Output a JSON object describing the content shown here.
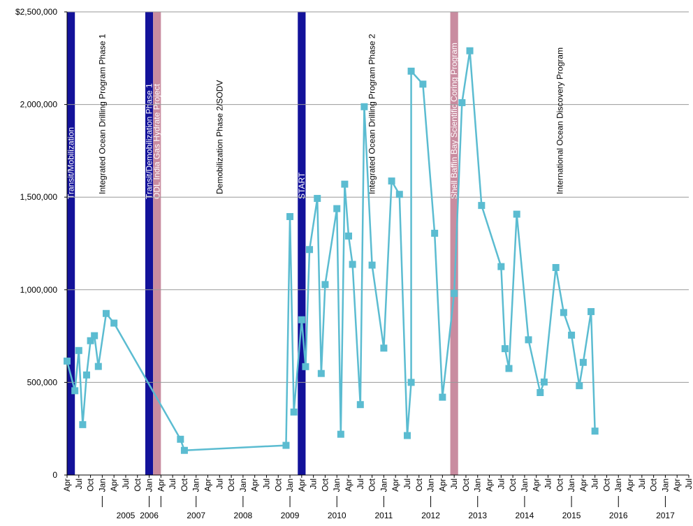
{
  "chart_data": {
    "type": "line",
    "title": "",
    "xlabel": "",
    "ylabel": "",
    "ylim": [
      0,
      2500000
    ],
    "grid": true,
    "legend": "none",
    "y_ticks": [
      {
        "value": 0,
        "label": "0"
      },
      {
        "value": 500000,
        "label": "500,000"
      },
      {
        "value": 1000000,
        "label": "1,000,000"
      },
      {
        "value": 1500000,
        "label": "1,500,000"
      },
      {
        "value": 2000000,
        "label": "2,000,000"
      },
      {
        "value": 2500000,
        "label": "$2,500,000"
      }
    ],
    "x_range": [
      "2004-04",
      "2017-07"
    ],
    "x_month_ticks": [
      {
        "date": "2004-04",
        "label": "Apr"
      },
      {
        "date": "2004-07",
        "label": "Jul"
      },
      {
        "date": "2004-10",
        "label": "Oct"
      },
      {
        "date": "2005-01",
        "label": "Jan"
      },
      {
        "date": "2005-04",
        "label": "Apr"
      },
      {
        "date": "2005-07",
        "label": "Jul"
      },
      {
        "date": "2005-10",
        "label": "Oct"
      },
      {
        "date": "2006-01",
        "label": "Jan"
      },
      {
        "date": "2006-04",
        "label": "Apr"
      },
      {
        "date": "2006-07",
        "label": "Jul"
      },
      {
        "date": "2006-10",
        "label": "Oct"
      },
      {
        "date": "2007-01",
        "label": "Jan"
      },
      {
        "date": "2007-04",
        "label": "Apr"
      },
      {
        "date": "2007-07",
        "label": "Jul"
      },
      {
        "date": "2007-10",
        "label": "Oct"
      },
      {
        "date": "2008-01",
        "label": "Jan"
      },
      {
        "date": "2008-04",
        "label": "Apr"
      },
      {
        "date": "2008-07",
        "label": "Jul"
      },
      {
        "date": "2008-10",
        "label": "Oct"
      },
      {
        "date": "2009-01",
        "label": "Jan"
      },
      {
        "date": "2009-04",
        "label": "Apr"
      },
      {
        "date": "2009-07",
        "label": "Jul"
      },
      {
        "date": "2009-10",
        "label": "Oct"
      },
      {
        "date": "2010-01",
        "label": "Jan"
      },
      {
        "date": "2010-04",
        "label": "Apr"
      },
      {
        "date": "2010-07",
        "label": "Jul"
      },
      {
        "date": "2010-10",
        "label": "Oct"
      },
      {
        "date": "2011-01",
        "label": "Jan"
      },
      {
        "date": "2011-04",
        "label": "Apr"
      },
      {
        "date": "2011-07",
        "label": "Jul"
      },
      {
        "date": "2011-10",
        "label": "Oct"
      },
      {
        "date": "2012-01",
        "label": "Jan"
      },
      {
        "date": "2012-04",
        "label": "Apr"
      },
      {
        "date": "2012-07",
        "label": "Jul"
      },
      {
        "date": "2012-10",
        "label": "Oct"
      },
      {
        "date": "2013-01",
        "label": "Jan"
      },
      {
        "date": "2013-04",
        "label": "Apr"
      },
      {
        "date": "2013-07",
        "label": "Jul"
      },
      {
        "date": "2013-10",
        "label": "Oct"
      },
      {
        "date": "2014-01",
        "label": "Jan"
      },
      {
        "date": "2014-04",
        "label": "Apr"
      },
      {
        "date": "2014-07",
        "label": "Jul"
      },
      {
        "date": "2014-10",
        "label": "Oct"
      },
      {
        "date": "2015-01",
        "label": "Jan"
      },
      {
        "date": "2015-04",
        "label": "Apr"
      },
      {
        "date": "2015-07",
        "label": "Jul"
      },
      {
        "date": "2015-10",
        "label": "Oct"
      },
      {
        "date": "2016-01",
        "label": "Jan"
      },
      {
        "date": "2016-04",
        "label": "Apr"
      },
      {
        "date": "2016-07",
        "label": "Jul"
      },
      {
        "date": "2016-10",
        "label": "Oct"
      },
      {
        "date": "2017-01",
        "label": "Jan"
      },
      {
        "date": "2017-04",
        "label": "Apr"
      },
      {
        "date": "2017-07",
        "label": "Jul"
      }
    ],
    "x_year_labels": [
      {
        "date": "2005-07",
        "label": "2005"
      },
      {
        "date": "2006-01",
        "label": "2006"
      },
      {
        "date": "2007-01",
        "label": "2007"
      },
      {
        "date": "2008-01",
        "label": "2008"
      },
      {
        "date": "2009-01",
        "label": "2009"
      },
      {
        "date": "2010-01",
        "label": "2010"
      },
      {
        "date": "2011-01",
        "label": "2011"
      },
      {
        "date": "2012-01",
        "label": "2012"
      },
      {
        "date": "2013-01",
        "label": "2013"
      },
      {
        "date": "2014-01",
        "label": "2014"
      },
      {
        "date": "2015-01",
        "label": "2015"
      },
      {
        "date": "2016-01",
        "label": "2016"
      },
      {
        "date": "2017-01",
        "label": "2017"
      }
    ],
    "year_separators": [
      "2005-01",
      "2006-01",
      "2006-04",
      "2007-01",
      "2008-01",
      "2009-01",
      "2010-01",
      "2011-01",
      "2012-01",
      "2013-01",
      "2014-01",
      "2015-01",
      "2016-01",
      "2017-01"
    ],
    "period_bands": [
      {
        "start": "2004-04",
        "end": "2004-06",
        "label": "Transit/Mobilization",
        "color": "#13129a"
      },
      {
        "start": "2005-12",
        "end": "2006-02",
        "label": "Transit/Demobilization Phase 1",
        "color": "#13129a"
      },
      {
        "start": "2006-02",
        "end": "2006-04",
        "label": "ODL India Gas Hydrate Project",
        "color": "#c98ca0"
      },
      {
        "start": "2009-03",
        "end": "2009-05",
        "label": "START",
        "color": "#13129a"
      },
      {
        "start": "2012-06",
        "end": "2012-08",
        "label": "Shell Baffin Bay Scientific Coring Program",
        "color": "#c98ca0"
      }
    ],
    "period_labels": [
      {
        "date": "2005-01",
        "label": "Integrated Ocean Drilling Program Phase 1"
      },
      {
        "date": "2007-07",
        "label": "Demobilization Phase 2/SODV"
      },
      {
        "date": "2010-10",
        "label": "Integrated Ocean Drilling Program Phase 2"
      },
      {
        "date": "2014-10",
        "label": "International Ocean Discovery Program"
      }
    ],
    "colors": {
      "series": "#5bbcd1",
      "marker": "#5bbcd1",
      "gridline": "#999999",
      "axis": "#000000",
      "band_dark": "#13129a",
      "band_pink": "#c98ca0"
    },
    "series": [
      {
        "points": [
          {
            "x": "2004-04",
            "y": 615000
          },
          {
            "x": "2004-06",
            "y": 455000
          },
          {
            "x": "2004-07",
            "y": 672000
          },
          {
            "x": "2004-08",
            "y": 272000
          },
          {
            "x": "2004-09",
            "y": 540000
          },
          {
            "x": "2004-10",
            "y": 725000
          },
          {
            "x": "2004-11",
            "y": 752000
          },
          {
            "x": "2004-12",
            "y": 586000
          },
          {
            "x": "2005-02",
            "y": 872000
          },
          {
            "x": "2005-04",
            "y": 820000
          },
          {
            "x": "2006-09",
            "y": 193000
          },
          {
            "x": "2006-10",
            "y": 133000
          },
          {
            "x": "2008-12",
            "y": 160000
          },
          {
            "x": "2009-01",
            "y": 1395000
          },
          {
            "x": "2009-02",
            "y": 340000
          },
          {
            "x": "2009-04",
            "y": 838000
          },
          {
            "x": "2009-05",
            "y": 585000
          },
          {
            "x": "2009-06",
            "y": 1217000
          },
          {
            "x": "2009-08",
            "y": 1493000
          },
          {
            "x": "2009-09",
            "y": 548000
          },
          {
            "x": "2009-10",
            "y": 1028000
          },
          {
            "x": "2010-01",
            "y": 1438000
          },
          {
            "x": "2010-02",
            "y": 220000
          },
          {
            "x": "2010-03",
            "y": 1570000
          },
          {
            "x": "2010-04",
            "y": 1290000
          },
          {
            "x": "2010-05",
            "y": 1137000
          },
          {
            "x": "2010-07",
            "y": 380000
          },
          {
            "x": "2010-08",
            "y": 1988000
          },
          {
            "x": "2010-10",
            "y": 1133000
          },
          {
            "x": "2011-01",
            "y": 685000
          },
          {
            "x": "2011-03",
            "y": 1587000
          },
          {
            "x": "2011-05",
            "y": 1515000
          },
          {
            "x": "2011-07",
            "y": 213000
          },
          {
            "x": "2011-08",
            "y": 500000
          },
          {
            "x": "2011-08",
            "y": 2180000
          },
          {
            "x": "2011-11",
            "y": 2110000
          },
          {
            "x": "2012-02",
            "y": 1305000
          },
          {
            "x": "2012-04",
            "y": 420000
          },
          {
            "x": "2012-07",
            "y": 980000
          },
          {
            "x": "2012-09",
            "y": 2010000
          },
          {
            "x": "2012-11",
            "y": 2290000
          },
          {
            "x": "2013-02",
            "y": 1455000
          },
          {
            "x": "2013-07",
            "y": 1125000
          },
          {
            "x": "2013-08",
            "y": 682000
          },
          {
            "x": "2013-09",
            "y": 575000
          },
          {
            "x": "2013-11",
            "y": 1408000
          },
          {
            "x": "2014-02",
            "y": 730000
          },
          {
            "x": "2014-05",
            "y": 445000
          },
          {
            "x": "2014-06",
            "y": 502000
          },
          {
            "x": "2014-09",
            "y": 1120000
          },
          {
            "x": "2014-11",
            "y": 877000
          },
          {
            "x": "2015-01",
            "y": 755000
          },
          {
            "x": "2015-03",
            "y": 482000
          },
          {
            "x": "2015-04",
            "y": 608000
          },
          {
            "x": "2015-06",
            "y": 882000
          },
          {
            "x": "2015-07",
            "y": 237000
          }
        ]
      }
    ]
  }
}
